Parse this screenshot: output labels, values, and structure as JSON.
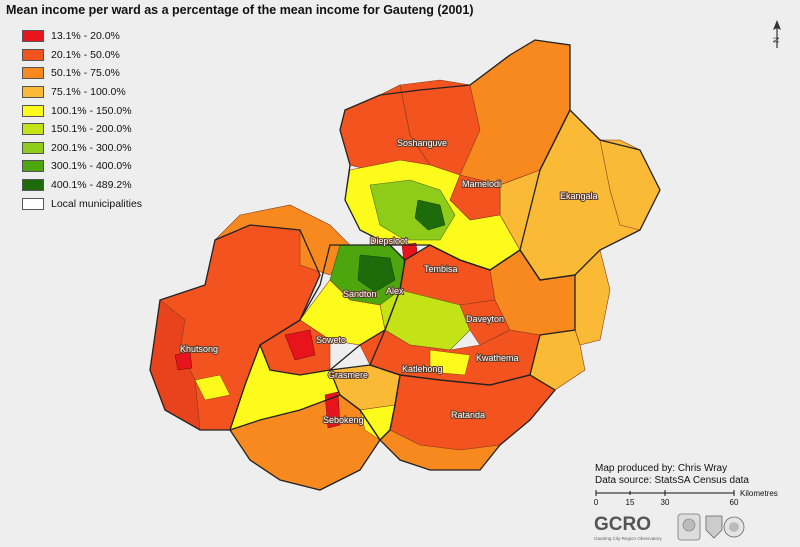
{
  "title": "Mean income per ward as a percentage of the mean income for Gauteng (2001)",
  "legend": [
    {
      "label": "13.1% - 20.0%",
      "color": "#e8141b"
    },
    {
      "label": "20.1% - 50.0%",
      "color": "#f2531f"
    },
    {
      "label": "50.1% - 75.0%",
      "color": "#f7891f"
    },
    {
      "label": "75.1% - 100.0%",
      "color": "#fbba36"
    },
    {
      "label": "100.1% - 150.0%",
      "color": "#fdfb1c"
    },
    {
      "label": "150.1% - 200.0%",
      "color": "#c4e317"
    },
    {
      "label": "200.1% - 300.0%",
      "color": "#8fcc19"
    },
    {
      "label": "300.1% - 400.0%",
      "color": "#4ea60f"
    },
    {
      "label": "400.1% - 489.2%",
      "color": "#1e6b0c"
    },
    {
      "label": "Local municipalities",
      "color": "#ffffff"
    }
  ],
  "places": {
    "soshanguve": "Soshanguve",
    "mamelodi": "Mamelodi",
    "ekangala": "Ekangala",
    "diepsloot": "Diepsloot",
    "tembisa": "Tembisa",
    "sandton": "Sandton",
    "alex": "Alex",
    "daveyton": "Daveyton",
    "khutsong": "Khutsong",
    "soweto": "Soweto",
    "kwathema": "Kwathema",
    "katlehong": "Katlehong",
    "grasmere": "Grasmere",
    "sebokeng": "Sebokeng",
    "ratanda": "Ratanda"
  },
  "credits": {
    "produced_by": "Map produced by: Chris Wray",
    "source": "Data source: StatsSA Census data"
  },
  "scalebar": {
    "ticks": [
      "0",
      "15",
      "30",
      "60"
    ],
    "unit": "Kilometres"
  },
  "logos": {
    "gcro": "GCRO",
    "gcro_sub": "Gauteng City-Region Observatory"
  },
  "north_label": "N"
}
